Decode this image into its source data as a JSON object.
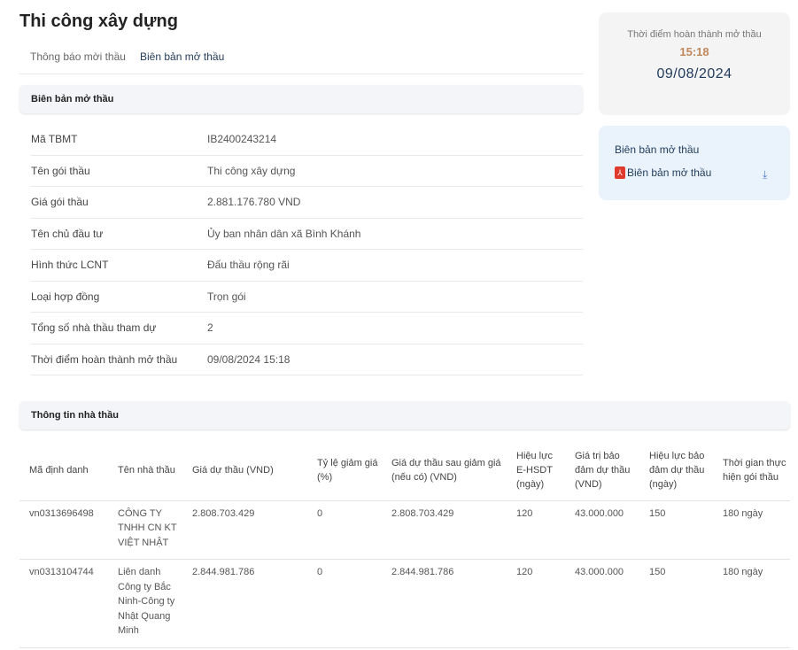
{
  "page": {
    "title": "Thi công xây dựng"
  },
  "tabs": [
    {
      "label": "Thông báo mời thầu",
      "active": false
    },
    {
      "label": "Biên bản mở thầu",
      "active": true
    }
  ],
  "section1": {
    "title": "Biên bản mở thầu",
    "rows": [
      {
        "label": "Mã TBMT",
        "value": "IB2400243214"
      },
      {
        "label": "Tên gói thầu",
        "value": "Thi công xây dựng"
      },
      {
        "label": "Giá gói thầu",
        "value": "2.881.176.780 VND"
      },
      {
        "label": "Tên chủ đầu tư",
        "value": "Ủy ban nhân dân xã Bình Khánh"
      },
      {
        "label": "Hình thức LCNT",
        "value": "Đấu thầu rộng rãi"
      },
      {
        "label": "Loại hợp đồng",
        "value": "Trọn gói"
      },
      {
        "label": "Tổng số nhà thầu tham dự",
        "value": "2"
      },
      {
        "label": "Thời điểm hoàn thành mở thầu",
        "value": "09/08/2024 15:18"
      }
    ]
  },
  "timecard": {
    "label": "Thời điểm hoàn thành mở thầu",
    "time": "15:18",
    "date": "09/08/2024",
    "time_color": "#c0885a"
  },
  "doccard": {
    "title": "Biên bản mở thầu",
    "file": "Biên bản mở thầu",
    "file_icon": "pdf-icon",
    "action_icon": "download-icon"
  },
  "section2": {
    "title": "Thông tin nhà thầu",
    "columns": [
      "Mã định danh",
      "Tên nhà thầu",
      "Giá dự thầu (VND)",
      "Tỷ lệ giảm giá (%)",
      "Giá dự thầu sau giảm giá (nếu có) (VND)",
      "Hiệu lực E-HSDT (ngày)",
      "Giá trị bảo đảm dự thầu (VND)",
      "Hiệu lực bảo đảm dự thầu (ngày)",
      "Thời gian thực hiện gói thầu"
    ],
    "rows": [
      [
        "vn0313696498",
        "CÔNG TY TNHH CN KT VIỆT NHẬT",
        "2.808.703.429",
        "0",
        "2.808.703.429",
        "120",
        "43.000.000",
        "150",
        "180 ngày"
      ],
      [
        "vn0313104744",
        "Liên danh Công ty Bắc Ninh-Công ty Nhật Quang Minh",
        "2.844.981.786",
        "0",
        "2.844.981.786",
        "120",
        "43.000.000",
        "150",
        "180 ngày"
      ]
    ]
  }
}
